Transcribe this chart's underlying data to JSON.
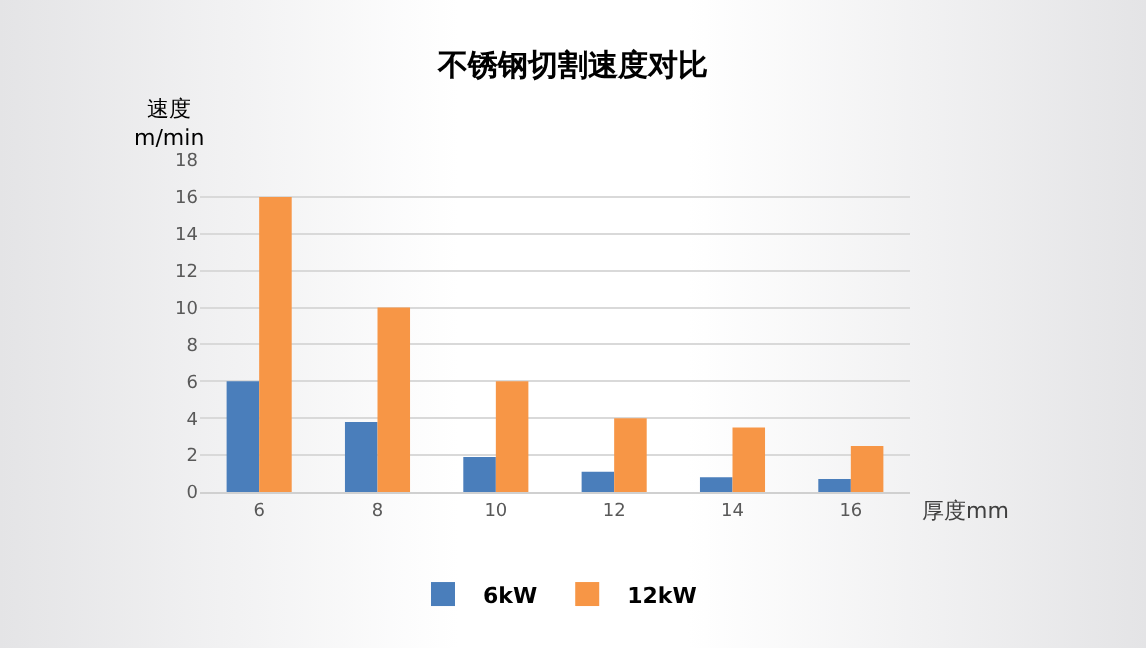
{
  "chart_data": {
    "type": "bar",
    "title": "不锈钢切割速度对比",
    "xlabel": "厚度mm",
    "ylabel": "速度\nm/min",
    "categories": [
      "6",
      "8",
      "10",
      "12",
      "14",
      "16"
    ],
    "series": [
      {
        "name": "6kW",
        "color": "#4a7ebb",
        "values": [
          6,
          3.8,
          1.9,
          1.1,
          0.8,
          0.7
        ]
      },
      {
        "name": "12kW",
        "color": "#f79646",
        "values": [
          16,
          10,
          6,
          4,
          3.5,
          2.5
        ]
      }
    ],
    "ylim": [
      0,
      18
    ],
    "yticks": [
      0,
      2,
      4,
      6,
      8,
      10,
      12,
      14,
      16,
      18
    ],
    "grid": "y",
    "legend": "bottom"
  }
}
